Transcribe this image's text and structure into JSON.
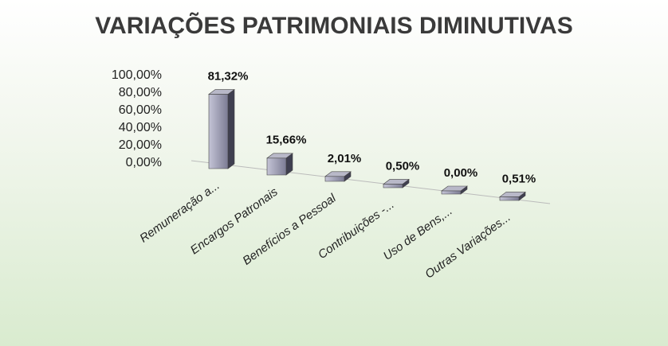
{
  "chart_data": {
    "type": "bar3d",
    "title": "VARIAÇÕES PATRIMONIAIS DIMINUTIVAS",
    "categories": [
      "Remuneração a...",
      "Encargos Patronais",
      "Benefícios a Pessoal",
      "Contribuições -...",
      "Uso de Bens,...",
      "Outras Variações..."
    ],
    "values": [
      81.32,
      15.66,
      2.01,
      0.5,
      0.0,
      0.51
    ],
    "value_labels": [
      "81,32%",
      "15,66%",
      "2,01%",
      "0,50%",
      "0,00%",
      "0,51%"
    ],
    "color": "#8e8ea6",
    "ylim": [
      0,
      100
    ],
    "yticks": [
      {
        "value": 0,
        "label": "0,00%"
      },
      {
        "value": 20,
        "label": "20,00%"
      },
      {
        "value": 40,
        "label": "40,00%"
      },
      {
        "value": 60,
        "label": "60,00%"
      },
      {
        "value": 80,
        "label": "80,00%"
      },
      {
        "value": 100,
        "label": "100,00%"
      }
    ]
  }
}
